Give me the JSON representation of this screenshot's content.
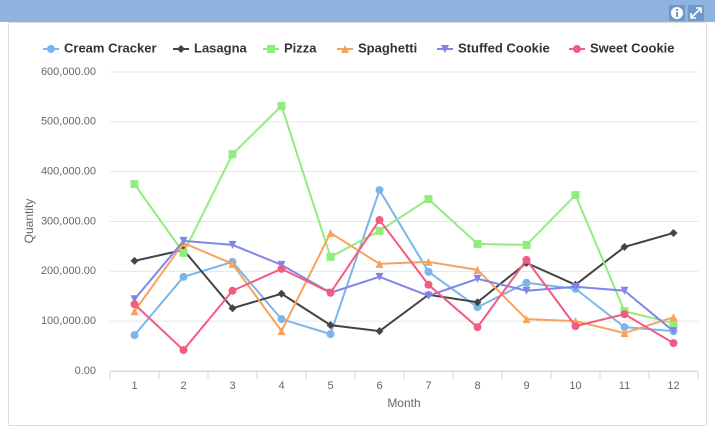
{
  "chart_data": {
    "type": "line",
    "x_label": "Month",
    "y_label": "Quantity",
    "categories": [
      "1",
      "2",
      "3",
      "4",
      "5",
      "6",
      "7",
      "8",
      "9",
      "10",
      "11",
      "12"
    ],
    "ylim": [
      0,
      600000
    ],
    "yticks": [
      {
        "value": 0,
        "label": "0.00"
      },
      {
        "value": 100000,
        "label": "100,000.00"
      },
      {
        "value": 200000,
        "label": "200,000.00"
      },
      {
        "value": 300000,
        "label": "300,000.00"
      },
      {
        "value": 400000,
        "label": "400,000.00"
      },
      {
        "value": 500000,
        "label": "500,000.00"
      },
      {
        "value": 600000,
        "label": "600,000.00"
      }
    ],
    "grid": true,
    "legend": "top",
    "series": [
      {
        "name": "Cream Cracker",
        "color": "#7cb5ec",
        "marker": "circle",
        "values": [
          72000,
          189000,
          219000,
          104000,
          74000,
          363000,
          199000,
          128000,
          177000,
          165000,
          88000,
          80000
        ]
      },
      {
        "name": "Lasagna",
        "color": "#434348",
        "marker": "diamond",
        "values": [
          221000,
          243000,
          126000,
          155000,
          92000,
          80000,
          153000,
          138000,
          217000,
          173000,
          249000,
          277000
        ]
      },
      {
        "name": "Pizza",
        "color": "#90ed7d",
        "marker": "square",
        "values": [
          375000,
          237000,
          435000,
          532000,
          229000,
          281000,
          345000,
          255000,
          253000,
          353000,
          120000,
          96000
        ]
      },
      {
        "name": "Spaghetti",
        "color": "#f7a35c",
        "marker": "triangle",
        "values": [
          120000,
          257000,
          215000,
          80000,
          277000,
          215000,
          219000,
          203000,
          104000,
          100000,
          76000,
          108000
        ]
      },
      {
        "name": "Stuffed Cookie",
        "color": "#8085e9",
        "marker": "triangle-down",
        "values": [
          144000,
          261000,
          253000,
          213000,
          157000,
          189000,
          151000,
          185000,
          161000,
          169000,
          161000,
          80000
        ]
      },
      {
        "name": "Sweet Cookie",
        "color": "#f15c80",
        "marker": "circle",
        "values": [
          134000,
          42000,
          161000,
          205000,
          157000,
          303000,
          173000,
          88000,
          223000,
          90000,
          114000,
          56000
        ]
      }
    ]
  }
}
